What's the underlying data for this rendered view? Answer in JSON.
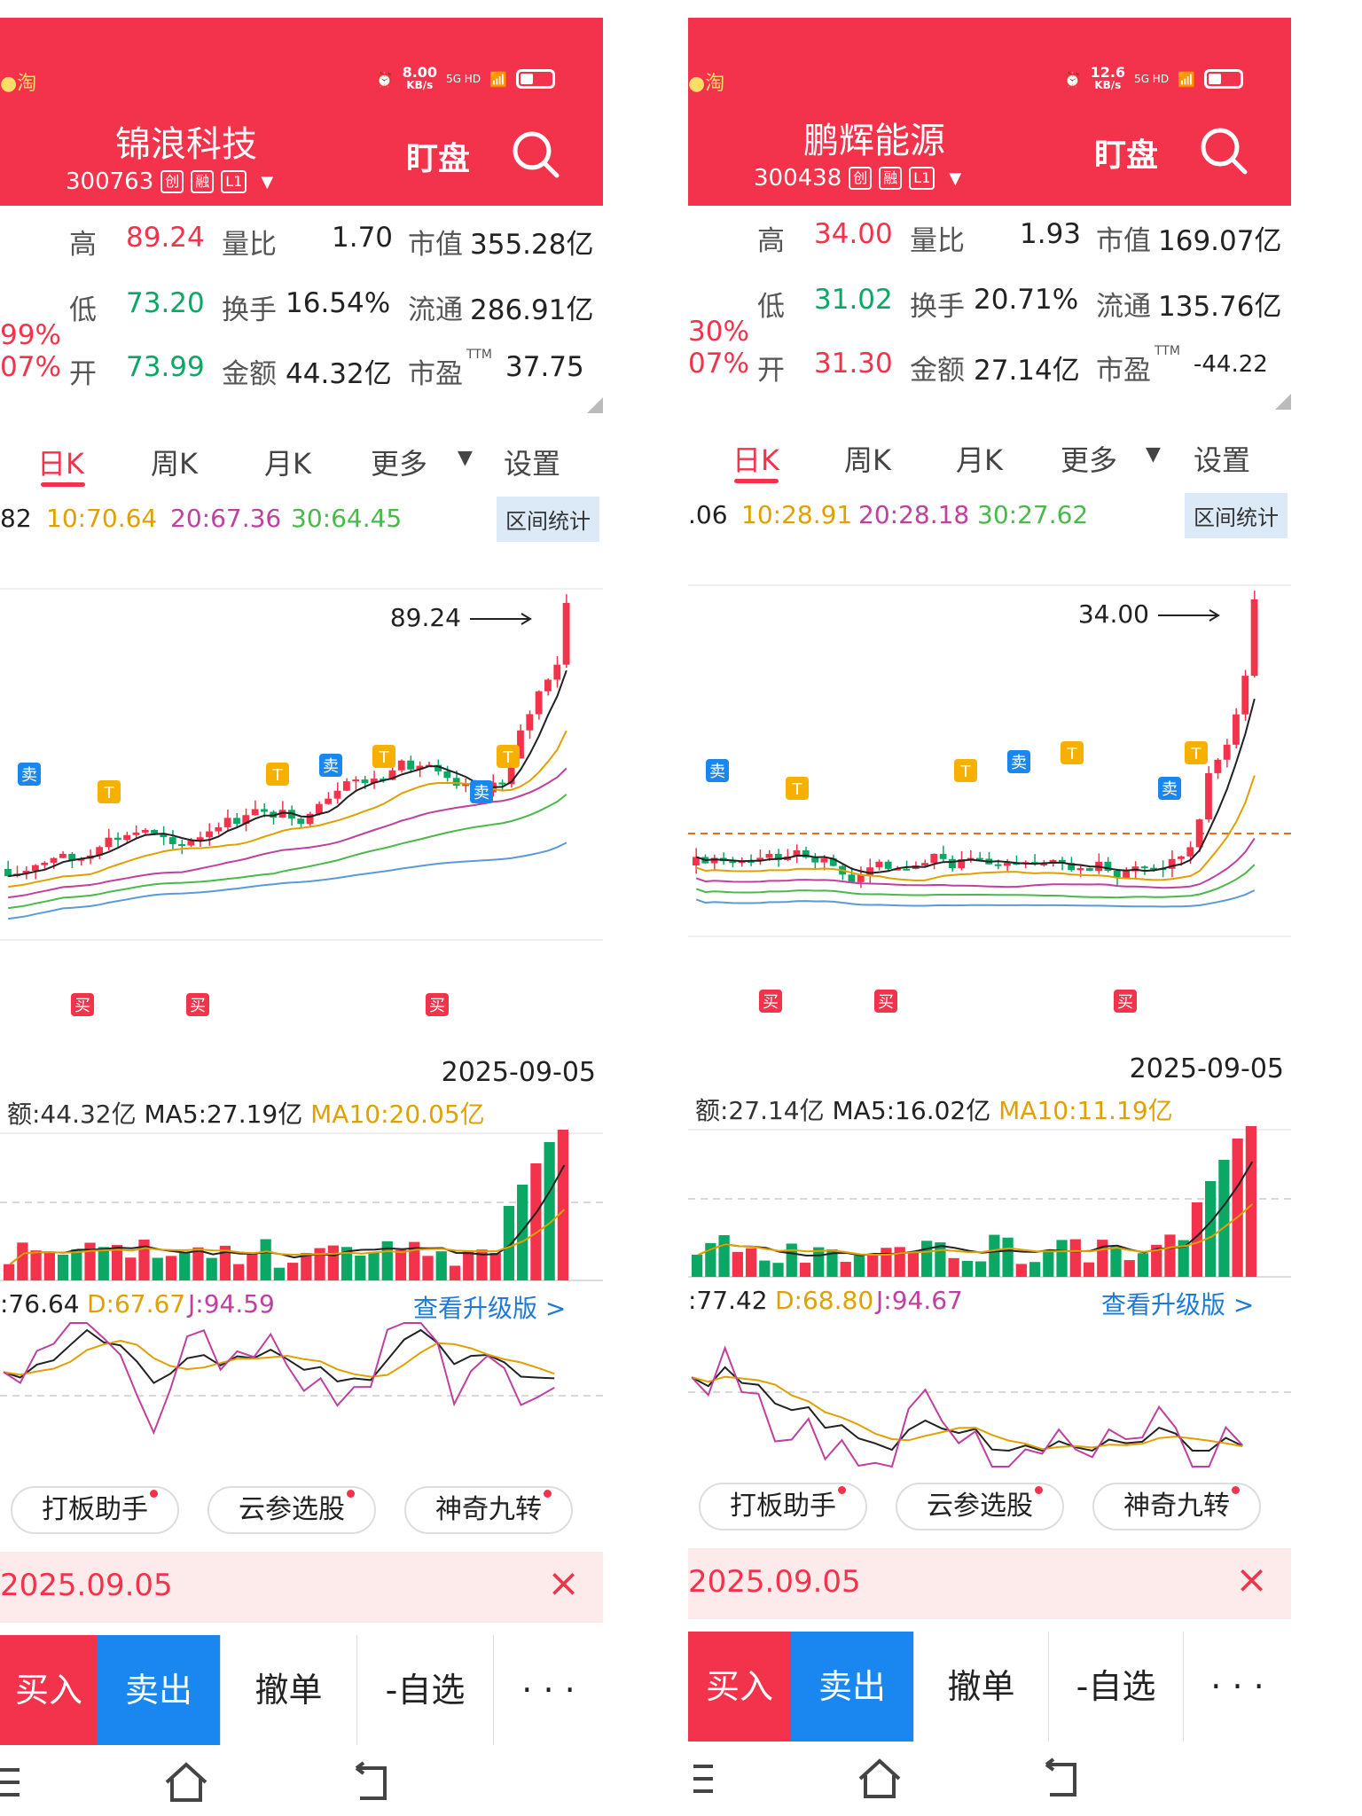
{
  "left": {
    "header": {
      "speed": "8.00",
      "speed_unit": "KB/s",
      "network": "5G HD",
      "name": "锦浪科技",
      "code": "300763",
      "tags": [
        "创",
        "融",
        "L1"
      ],
      "watch": "盯盘"
    },
    "quote": {
      "row1": {
        "l1": "高",
        "v1": "89.24",
        "l2": "量比",
        "v2": "1.70",
        "l3": "市值",
        "v3": "355.28亿"
      },
      "row2": {
        "pct": "99%",
        "l1": "低",
        "v1": "73.20",
        "l2": "换手",
        "v2": "16.54%",
        "l3": "流通",
        "v3": "286.91亿"
      },
      "row3": {
        "pct": "07%",
        "l1": "开",
        "v1": "73.99",
        "l2": "金额",
        "v2": "44.32亿",
        "l3": "市盈",
        "sup": "TTM",
        "v3": "37.75"
      }
    },
    "tabs": [
      "日K",
      "周K",
      "月K",
      "更多",
      "设置"
    ],
    "ma": {
      "m5": "82",
      "m10": "10:70.64",
      "m20": "20:67.36",
      "m30": "30:64.45",
      "interval": "区间统计"
    },
    "chart": {
      "high_label": "89.24",
      "date": "2025-09-05"
    },
    "vol": {
      "amt": "额:44.32亿",
      "ma5": "MA5:27.19亿",
      "ma10": "MA10:20.05亿"
    },
    "kdj": {
      "k": ":76.64",
      "d": "D:67.67",
      "j": "J:94.59",
      "upgrade": "查看升级版 >"
    },
    "tools": [
      "打板助手",
      "云参选股",
      "神奇九转"
    ],
    "notice": {
      "date": "2025.09.05",
      "close": "×"
    },
    "trade": [
      "买入",
      "卖出",
      "撤单",
      "-自选",
      "· · ·"
    ]
  },
  "right": {
    "header": {
      "speed": "12.6",
      "speed_unit": "KB/s",
      "network": "5G HD",
      "name": "鹏辉能源",
      "code": "300438",
      "tags": [
        "创",
        "融",
        "L1"
      ],
      "watch": "盯盘"
    },
    "quote": {
      "row1": {
        "l1": "高",
        "v1": "34.00",
        "l2": "量比",
        "v2": "1.93",
        "l3": "市值",
        "v3": "169.07亿"
      },
      "row2": {
        "pct": "30%",
        "l1": "低",
        "v1": "31.02",
        "l2": "换手",
        "v2": "20.71%",
        "l3": "流通",
        "v3": "135.76亿"
      },
      "row3": {
        "pct": "07%",
        "l1": "开",
        "v1": "31.30",
        "l2": "金额",
        "v2": "27.14亿",
        "l3": "市盈",
        "sup": "TTM",
        "v3": "-44.22"
      }
    },
    "tabs": [
      "日K",
      "周K",
      "月K",
      "更多",
      "设置"
    ],
    "ma": {
      "m5": ".06",
      "m10": "10:28.91",
      "m20": "20:28.18",
      "m30": "30:27.62",
      "interval": "区间统计"
    },
    "chart": {
      "high_label": "34.00",
      "date": "2025-09-05"
    },
    "vol": {
      "amt": "额:27.14亿",
      "ma5": "MA5:16.02亿",
      "ma10": "MA10:11.19亿"
    },
    "kdj": {
      "k": ":77.42",
      "d": "D:68.80",
      "j": "J:94.67",
      "upgrade": "查看升级版 >"
    },
    "tools": [
      "打板助手",
      "云参选股",
      "神奇九转"
    ],
    "notice": {
      "date": "2025.09.05",
      "close": "×"
    },
    "trade": [
      "买入",
      "卖出",
      "撤单",
      "-自选",
      "· · ·"
    ]
  },
  "signals": {
    "t": "T",
    "sell": "卖",
    "buy": "买"
  },
  "colors": {
    "up": "#f2334b",
    "down": "#0aa864",
    "ma5": "#222222",
    "ma10": "#e0a100",
    "ma20": "#c040a0",
    "ma30": "#4bb84b",
    "ma60": "#5a9ad8",
    "accent": "#f2334b",
    "sell_button": "#1a86f0"
  }
}
